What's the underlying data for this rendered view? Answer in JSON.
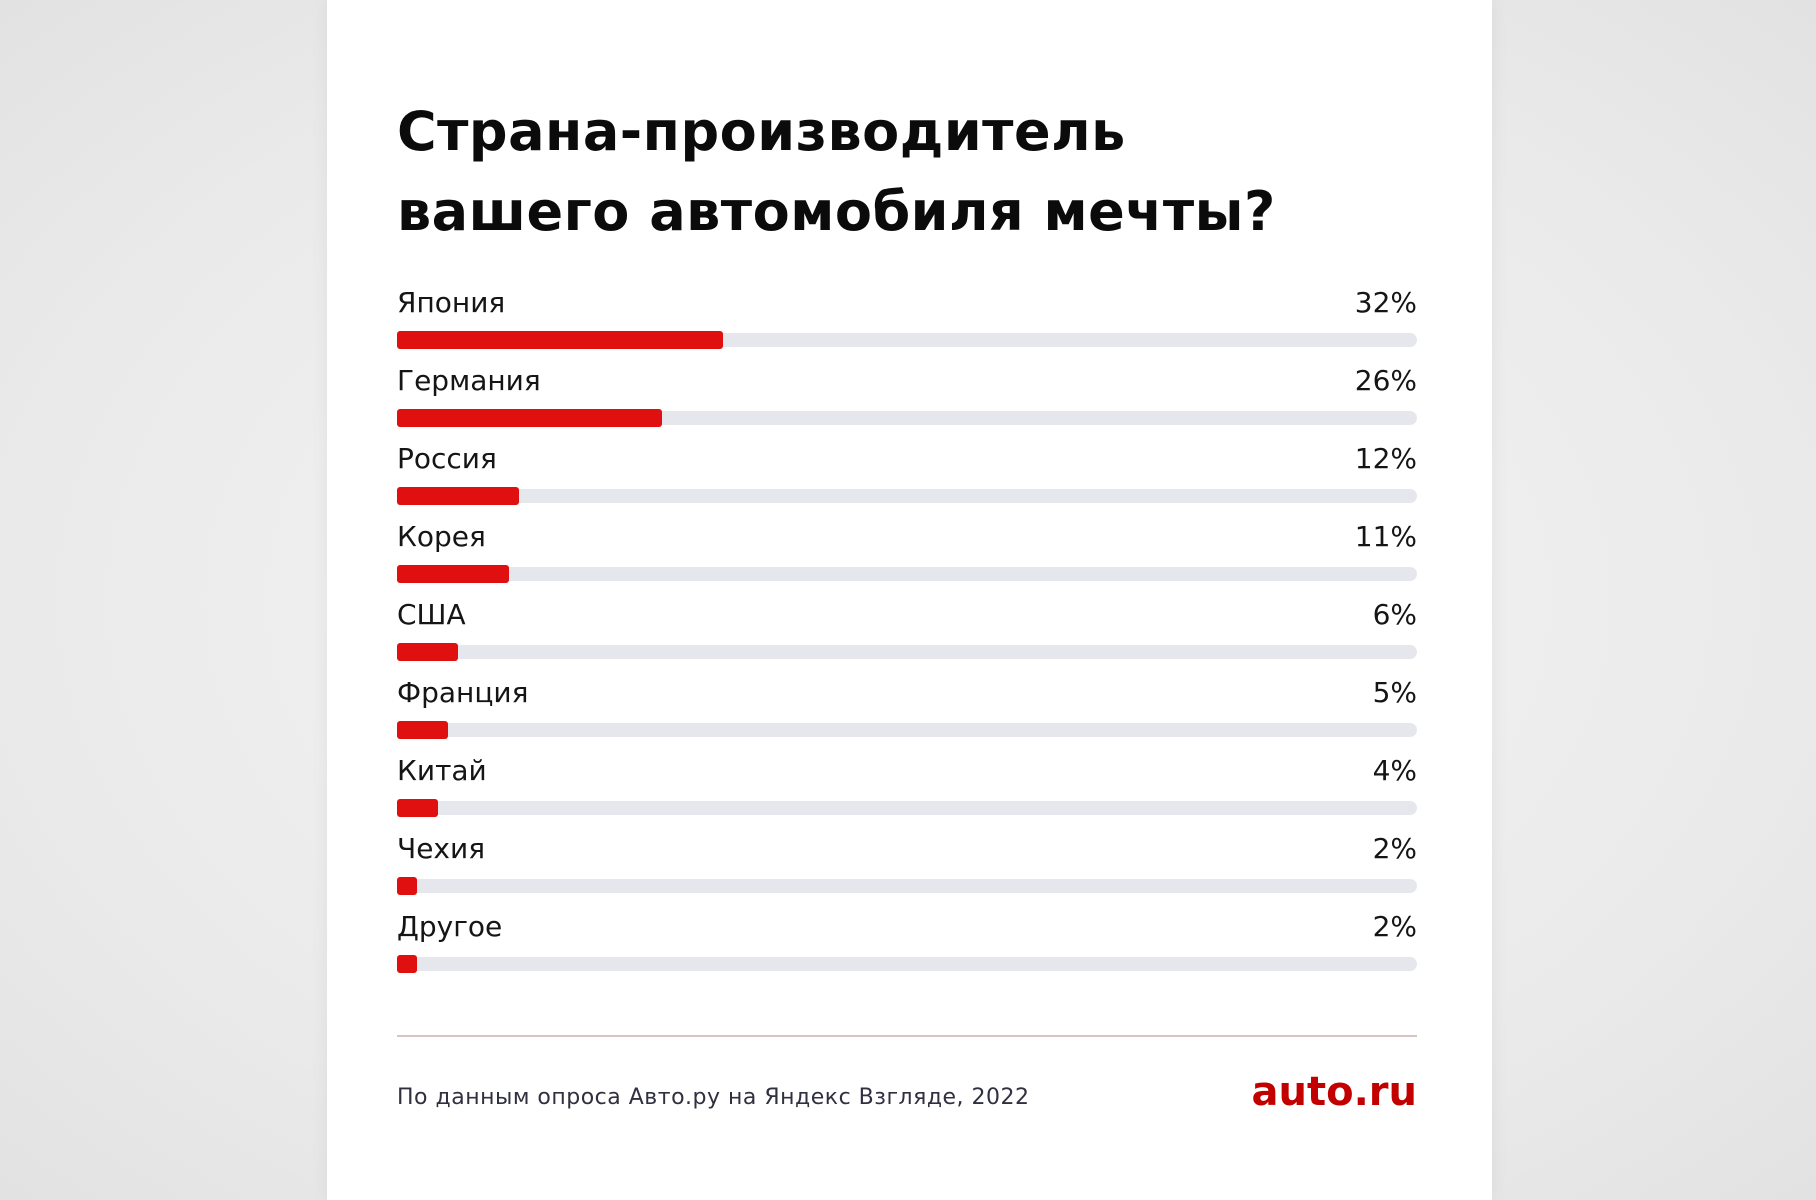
{
  "header": {
    "title_line1": "Страна-производитель",
    "title_line2": "вашего автомобиля мечты?"
  },
  "chart_data": {
    "type": "bar",
    "orientation": "horizontal",
    "title": "Страна-производитель вашего автомобиля мечты?",
    "value_suffix": "%",
    "categories": [
      "Япония",
      "Германия",
      "Россия",
      "Корея",
      "США",
      "Франция",
      "Китай",
      "Чехия",
      "Другое"
    ],
    "values": [
      32,
      26,
      12,
      11,
      6,
      5,
      4,
      2,
      2
    ],
    "value_labels": [
      "32%",
      "26%",
      "12%",
      "11%",
      "6%",
      "5%",
      "4%",
      "2%",
      "2%"
    ],
    "xlim": [
      0,
      100
    ],
    "bar_color": "#e01010",
    "track_color": "#e6e7ec",
    "grid": false,
    "legend": "none"
  },
  "footer": {
    "source": "По данным опроса Авто.ру на Яндекс Взгляде, 2022",
    "brand": "auto.ru",
    "brand_color": "#c20000"
  }
}
